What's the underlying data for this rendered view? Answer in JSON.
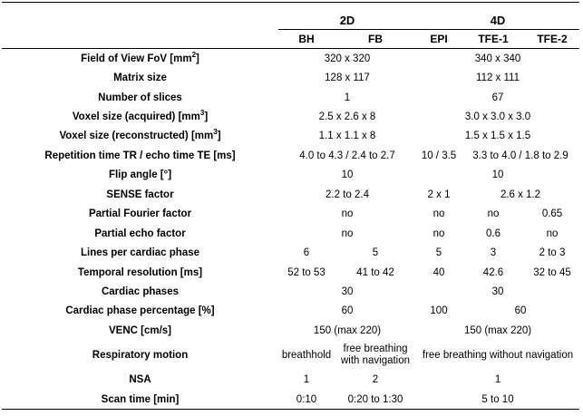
{
  "headers": {
    "group_2d": "2D",
    "group_4d": "4D",
    "bh": "BH",
    "fb": "FB",
    "epi": "EPI",
    "tfe1": "TFE-1",
    "tfe2": "TFE-2"
  },
  "rows": {
    "fov": {
      "label": "Field of View FoV [mm",
      "label_sup": "2",
      "label_end": "]",
      "v2d": "320 x 320",
      "v4d": "340 x 340"
    },
    "matrix": {
      "label": "Matrix size",
      "v2d": "128 x 117",
      "v4d": "112 x 111"
    },
    "slices": {
      "label": "Number of slices",
      "v2d": "1",
      "v4d": "67"
    },
    "voxel_acq": {
      "label": "Voxel size (acquired) [mm",
      "label_sup": "3",
      "label_end": "]",
      "v2d": "2.5 x 2.6 x 8",
      "v4d": "3.0 x 3.0 x 3.0"
    },
    "voxel_rec": {
      "label": "Voxel size (reconstructed) [mm",
      "label_sup": "3",
      "label_end": "]",
      "v2d": "1.1 x 1.1 x 8",
      "v4d": "1.5 x 1.5 x 1.5"
    },
    "tr_te": {
      "label": "Repetition time TR / echo time TE [ms]",
      "v2d": "4.0 to 4.3 / 2.4 to 2.7",
      "epi": "10 / 3.5",
      "tfe": "3.3 to 4.0 / 1.8 to 2.9"
    },
    "flip": {
      "label": "Flip angle [°]",
      "v2d": "10",
      "v4d": "10"
    },
    "sense": {
      "label": "SENSE factor",
      "v2d": "2.2 to 2.4",
      "epi": "2 x 1",
      "tfe": "2.6 x 1.2"
    },
    "pff": {
      "label": "Partial Fourier factor",
      "v2d": "no",
      "epi": "no",
      "tfe1": "no",
      "tfe2": "0.65"
    },
    "pef": {
      "label": "Partial echo factor",
      "v2d": "no",
      "epi": "no",
      "tfe1": "0.6",
      "tfe2": "no"
    },
    "lines": {
      "label": "Lines per cardiac phase",
      "bh": "6",
      "fb": "5",
      "epi": "5",
      "tfe1": "3",
      "tfe2": "2 to 3"
    },
    "temporal": {
      "label": "Temporal resolution [ms]",
      "bh": "52 to 53",
      "fb": "41 to 42",
      "epi": "40",
      "tfe1": "42.6",
      "tfe2": "32 to 45"
    },
    "phases": {
      "label": "Cardiac phases",
      "v2d": "30",
      "v4d": "30"
    },
    "phase_pct": {
      "label": "Cardiac phase percentage [%]",
      "v2d": "60",
      "epi": "100",
      "tfe": "60"
    },
    "venc": {
      "label": "VENC [cm/s]",
      "v2d": "150 (max 220)",
      "v4d": "150 (max 220)"
    },
    "resp": {
      "label": "Respiratory motion",
      "bh": "breathhold",
      "fb_line1": "free breathing",
      "fb_line2": "with navigation",
      "v4d": "free breathing without navigation"
    },
    "nsa": {
      "label": "NSA",
      "bh": "1",
      "fb": "2",
      "v4d": "1"
    },
    "scan": {
      "label": "Scan time [min]",
      "bh": "0:10",
      "fb": "0:20 to 1:30",
      "v4d": "5 to 10"
    }
  }
}
